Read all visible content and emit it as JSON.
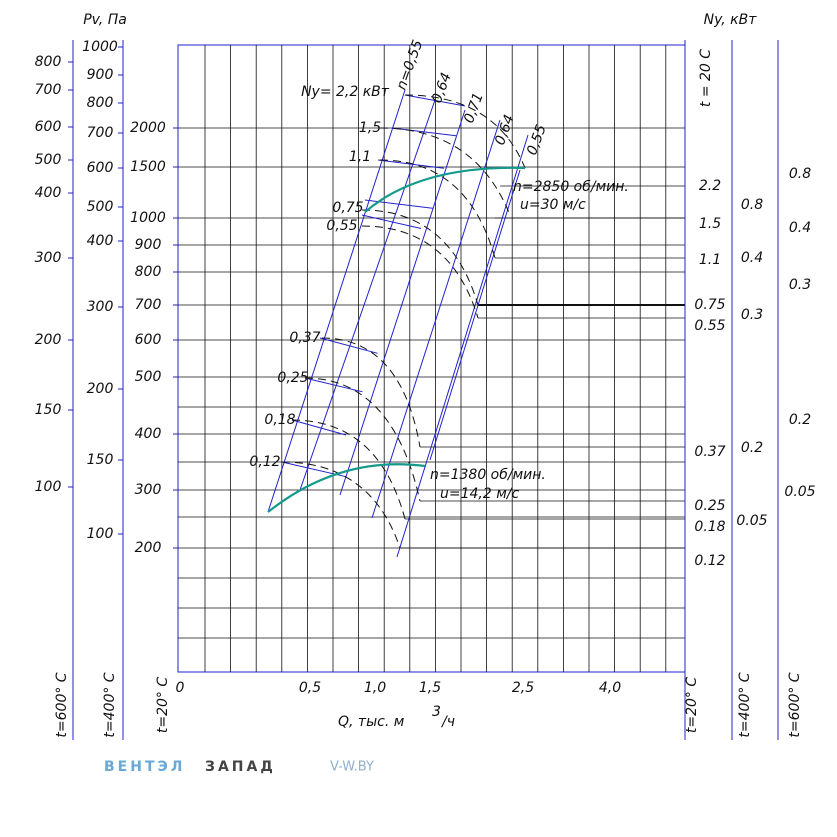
{
  "header": {
    "pv_label": "Pv, Па",
    "ny_label": "Ny, кВт"
  },
  "left_scales": [
    {
      "temp": "t=600° C",
      "ticks": [
        "800",
        "700",
        "600",
        "500",
        "400",
        "300",
        "200",
        "150",
        "100"
      ]
    },
    {
      "temp": "t=400° C",
      "ticks": [
        "1000",
        "900",
        "800",
        "700",
        "600",
        "500",
        "400",
        "300",
        "200",
        "150",
        "100"
      ]
    },
    {
      "temp": "t=20° C",
      "ticks": [
        "2000",
        "1500",
        "1000",
        "900",
        "800",
        "700",
        "600",
        "500",
        "400",
        "300",
        "200"
      ]
    }
  ],
  "right_scales": [
    {
      "temp": "t=20° C",
      "top_temp": "t = 20 C",
      "ticks": [
        "2.2",
        "1.5",
        "1.1",
        "0.75",
        "0.55",
        "0.37",
        "0.25",
        "0.18",
        "0.12"
      ]
    },
    {
      "temp": "t=400° C",
      "ticks": [
        "0.8",
        "0.4",
        "0.3",
        "0.2",
        "0.05"
      ]
    },
    {
      "temp": "t=600° C",
      "ticks": [
        "0.8",
        "0.4",
        "0.3",
        "0.2",
        "0.05"
      ]
    }
  ],
  "x_axis": {
    "label": "Q, тыс. м",
    "sup": "3",
    "unit": "/ч",
    "ticks": [
      "0",
      "0,5",
      "1,0",
      "1,5",
      "2,5",
      "4,0"
    ]
  },
  "power_labels": [
    "Ny= 2,2 кВт",
    "1,5",
    "1,1",
    "0,75",
    "0,55",
    "0,37",
    "0,25",
    "0,18",
    "0,12"
  ],
  "efficiency_labels": [
    "n=0,55",
    "0,64",
    "0,71",
    "0,64",
    "0,55"
  ],
  "speed_labels": [
    "n=2850 об/мин.",
    "u=30 м/с",
    "n=1380 об/мин.",
    "u=14,2 м/с"
  ],
  "footer": {
    "brand_a": "ВЕНТЭЛ",
    "brand_b": "ЗАПАД",
    "site": "V-W.BY"
  }
}
